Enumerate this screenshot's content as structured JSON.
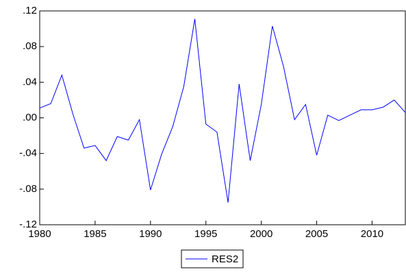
{
  "chart_data": {
    "type": "line",
    "x": [
      1980,
      1981,
      1982,
      1983,
      1984,
      1985,
      1986,
      1987,
      1988,
      1989,
      1990,
      1991,
      1992,
      1993,
      1994,
      1995,
      1996,
      1997,
      1998,
      1999,
      2000,
      2001,
      2002,
      2003,
      2004,
      2005,
      2006,
      2007,
      2008,
      2009,
      2010,
      2011,
      2012,
      2013
    ],
    "series": [
      {
        "name": "RES2",
        "color": "#0000ff",
        "values": [
          0.011,
          0.016,
          0.048,
          0.004,
          -0.034,
          -0.031,
          -0.048,
          -0.021,
          -0.025,
          -0.002,
          -0.081,
          -0.041,
          -0.01,
          0.035,
          0.111,
          -0.007,
          -0.016,
          -0.095,
          0.038,
          -0.048,
          0.015,
          0.103,
          0.058,
          -0.002,
          0.015,
          -0.042,
          0.003,
          -0.003,
          0.003,
          0.009,
          0.009,
          0.012,
          0.02,
          0.006
        ]
      }
    ],
    "xlim": [
      1980,
      2013
    ],
    "xticks": [
      1980,
      1985,
      1990,
      1995,
      2000,
      2005,
      2010
    ],
    "ylim": [
      -0.12,
      0.12
    ],
    "yticks": [
      {
        "value": -0.12,
        "label": "-.12"
      },
      {
        "value": -0.08,
        "label": "-.08"
      },
      {
        "value": -0.04,
        "label": "-.04"
      },
      {
        "value": 0,
        "label": ".00"
      },
      {
        "value": 0.04,
        "label": ".04"
      },
      {
        "value": 0.08,
        "label": ".08"
      },
      {
        "value": 0.12,
        "label": ".12"
      }
    ],
    "legend": "bottom"
  }
}
